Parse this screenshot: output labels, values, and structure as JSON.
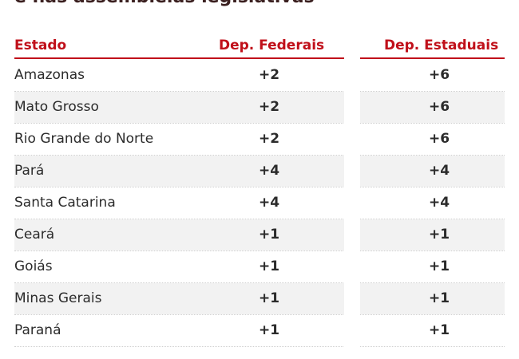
{
  "title_fragment": "e nas assembleias legislativas",
  "table": {
    "headers": {
      "estado": "Estado",
      "federais": "Dep. Federais",
      "estaduais": "Dep. Estaduais"
    },
    "rows": [
      {
        "estado": "Amazonas",
        "federais": "+2",
        "estaduais": "+6"
      },
      {
        "estado": "Mato Grosso",
        "federais": "+2",
        "estaduais": "+6"
      },
      {
        "estado": "Rio Grande do Norte",
        "federais": "+2",
        "estaduais": "+6"
      },
      {
        "estado": "Pará",
        "federais": "+4",
        "estaduais": "+4"
      },
      {
        "estado": "Santa Catarina",
        "federais": "+4",
        "estaduais": "+4"
      },
      {
        "estado": "Ceará",
        "federais": "+1",
        "estaduais": "+1"
      },
      {
        "estado": "Goiás",
        "federais": "+1",
        "estaduais": "+1"
      },
      {
        "estado": "Minas Gerais",
        "federais": "+1",
        "estaduais": "+1"
      },
      {
        "estado": "Paraná",
        "federais": "+1",
        "estaduais": "+1"
      }
    ]
  },
  "colors": {
    "accent": "#c0101a",
    "text": "#2b2b2b",
    "stripe": "#f2f2f2"
  }
}
